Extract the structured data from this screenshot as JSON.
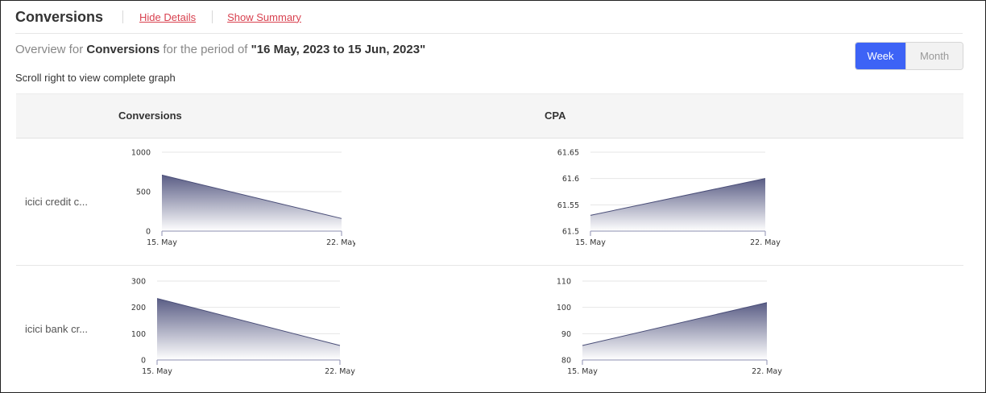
{
  "header": {
    "title": "Conversions",
    "hide_details": "Hide Details",
    "show_summary": "Show Summary"
  },
  "overview": {
    "prefix": "Overview for ",
    "metric": "Conversions",
    "middle": " for the period of ",
    "period": "\"16 May, 2023 to 15 Jun, 2023\""
  },
  "scroll_hint": "Scroll right to view complete graph",
  "toggle": {
    "week": "Week",
    "month": "Month",
    "selected": "Week"
  },
  "columns": [
    "Conversions",
    "CPA"
  ],
  "rows": [
    {
      "label": "icici credit c..."
    },
    {
      "label": "icici bank cr..."
    }
  ],
  "colors": {
    "area_top": "#5a5d85",
    "area_bottom": "#ffffff",
    "line": "#4a4e78",
    "accent": "#3d63f6",
    "link": "#d8414f"
  },
  "chart_data": [
    {
      "type": "area",
      "row": "icici credit c...",
      "column": "Conversions",
      "x": [
        "15. May",
        "22. May"
      ],
      "y": [
        710,
        160
      ],
      "ylim": [
        0,
        1000
      ],
      "yticks": [
        0,
        500,
        1000
      ],
      "yticklabels": [
        "0",
        "500",
        "1000"
      ],
      "grid": true
    },
    {
      "type": "area",
      "row": "icici credit c...",
      "column": "CPA",
      "x": [
        "15. May",
        "22. May"
      ],
      "y": [
        61.53,
        61.6
      ],
      "ylim": [
        61.5,
        61.65
      ],
      "yticks": [
        61.5,
        61.55,
        61.6,
        61.65
      ],
      "yticklabels": [
        "61.5",
        "61.55",
        "61.6",
        "61.65"
      ],
      "grid": true
    },
    {
      "type": "area",
      "row": "icici bank cr...",
      "column": "Conversions",
      "x": [
        "15. May",
        "22. May"
      ],
      "y": [
        234,
        55
      ],
      "ylim": [
        0,
        300
      ],
      "yticks": [
        0,
        100,
        200,
        300
      ],
      "yticklabels": [
        "0",
        "100",
        "200",
        "300"
      ],
      "grid": true
    },
    {
      "type": "area",
      "row": "icici bank cr...",
      "column": "CPA",
      "x": [
        "15. May",
        "22. May"
      ],
      "y": [
        85.5,
        101.8
      ],
      "ylim": [
        80,
        110
      ],
      "yticks": [
        80,
        90,
        100,
        110
      ],
      "yticklabels": [
        "80",
        "90",
        "100",
        "110"
      ],
      "grid": true
    }
  ]
}
